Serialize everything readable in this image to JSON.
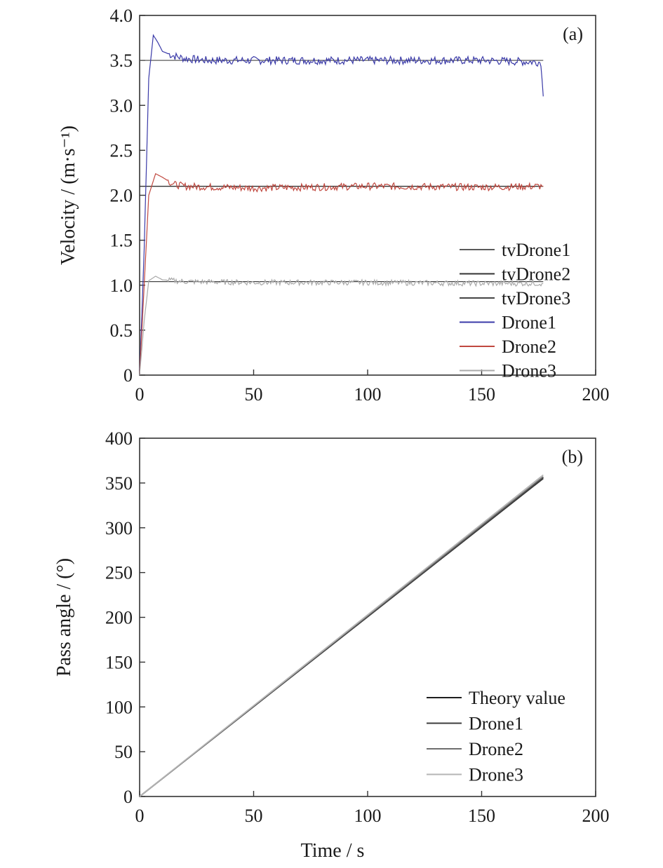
{
  "chart_data": [
    {
      "type": "line",
      "panel_label": "(a)",
      "xlabel": "",
      "ylabel": "Velocity / (m·s⁻¹)",
      "xlim": [
        0,
        200
      ],
      "ylim": [
        0,
        4
      ],
      "xticks": [
        "0",
        "50",
        "100",
        "150",
        "200"
      ],
      "yticks": [
        "0",
        "0.5",
        "1.0",
        "1.5",
        "2.0",
        "2.5",
        "3.0",
        "3.5",
        "4.0"
      ],
      "legend_position": "lower-right",
      "series": [
        {
          "name": "tvDrone1",
          "color": "#5a5a5a",
          "points": [
            [
              0,
              3.5
            ],
            [
              177,
              3.5
            ]
          ]
        },
        {
          "name": "tvDrone2",
          "color": "#333333",
          "points": [
            [
              0,
              2.1
            ],
            [
              177,
              2.1
            ]
          ]
        },
        {
          "name": "tvDrone3",
          "color": "#444444",
          "points": [
            [
              0,
              1.04
            ],
            [
              177,
              1.04
            ]
          ]
        },
        {
          "name": "Drone1",
          "color": "#3a3aa8",
          "points": [
            [
              0,
              0
            ],
            [
              2,
              1.4
            ],
            [
              4,
              3.3
            ],
            [
              6,
              3.78
            ],
            [
              8,
              3.7
            ],
            [
              10,
              3.6
            ],
            [
              15,
              3.55
            ],
            [
              20,
              3.52
            ],
            [
              30,
              3.5
            ],
            [
              50,
              3.5
            ],
            [
              100,
              3.5
            ],
            [
              150,
              3.5
            ],
            [
              176,
              3.48
            ],
            [
              177,
              3.1
            ]
          ]
        },
        {
          "name": "Drone2",
          "color": "#c0483f",
          "points": [
            [
              0,
              0
            ],
            [
              2,
              1.0
            ],
            [
              4,
              2.0
            ],
            [
              7,
              2.24
            ],
            [
              10,
              2.2
            ],
            [
              15,
              2.12
            ],
            [
              20,
              2.1
            ],
            [
              50,
              2.08
            ],
            [
              100,
              2.1
            ],
            [
              150,
              2.09
            ],
            [
              177,
              2.1
            ]
          ]
        },
        {
          "name": "Drone3",
          "color": "#a9a9a9",
          "points": [
            [
              0,
              0
            ],
            [
              2,
              0.6
            ],
            [
              4,
              1.05
            ],
            [
              7,
              1.1
            ],
            [
              10,
              1.06
            ],
            [
              20,
              1.04
            ],
            [
              50,
              1.03
            ],
            [
              100,
              1.03
            ],
            [
              150,
              1.02
            ],
            [
              177,
              1.02
            ]
          ]
        }
      ]
    },
    {
      "type": "line",
      "panel_label": "(b)",
      "xlabel": "Time / s",
      "ylabel": "Pass angle / (°)",
      "xlim": [
        0,
        200
      ],
      "ylim": [
        0,
        400
      ],
      "xticks": [
        "0",
        "50",
        "100",
        "150",
        "200"
      ],
      "yticks": [
        "0",
        "50",
        "100",
        "150",
        "200",
        "250",
        "300",
        "350",
        "400"
      ],
      "legend_position": "lower-right",
      "series": [
        {
          "name": "Theory value",
          "color": "#1e1e1e",
          "points": [
            [
              0,
              0
            ],
            [
              177,
              356
            ]
          ]
        },
        {
          "name": "Drone1",
          "color": "#3c3c3c",
          "points": [
            [
              0,
              0
            ],
            [
              177,
              355
            ]
          ]
        },
        {
          "name": "Drone2",
          "color": "#6e6e6e",
          "points": [
            [
              0,
              0
            ],
            [
              177,
              357
            ]
          ]
        },
        {
          "name": "Drone3",
          "color": "#b5b5b5",
          "points": [
            [
              0,
              0
            ],
            [
              177,
              359
            ]
          ]
        }
      ]
    }
  ]
}
